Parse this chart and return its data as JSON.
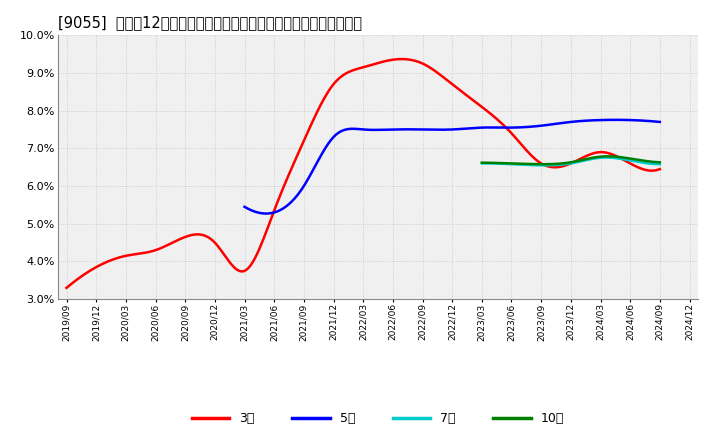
{
  "title": "[9055]  売上高12か月移動合計の対前年同期増減率の標準偏差の推移",
  "ylim": [
    0.03,
    0.1
  ],
  "yticks": [
    0.03,
    0.04,
    0.05,
    0.06,
    0.07,
    0.08,
    0.09,
    0.1
  ],
  "x_labels": [
    "2019/09",
    "2019/12",
    "2020/03",
    "2020/06",
    "2020/09",
    "2020/12",
    "2021/03",
    "2021/06",
    "2021/09",
    "2021/12",
    "2022/03",
    "2022/06",
    "2022/09",
    "2022/12",
    "2023/03",
    "2023/06",
    "2023/09",
    "2023/12",
    "2024/03",
    "2024/06",
    "2024/09",
    "2024/12"
  ],
  "series": {
    "3year": {
      "color": "#ff0000",
      "label": "3年",
      "x": [
        0,
        1,
        2,
        3,
        4,
        5,
        6,
        7,
        8,
        9,
        10,
        11,
        12,
        13,
        14,
        15,
        16,
        17,
        18,
        19,
        20
      ],
      "y": [
        0.033,
        0.0385,
        0.0415,
        0.043,
        0.0465,
        0.045,
        0.0375,
        0.0535,
        0.072,
        0.087,
        0.0915,
        0.0935,
        0.0925,
        0.087,
        0.081,
        0.074,
        0.066,
        0.066,
        0.069,
        0.066,
        0.0645
      ]
    },
    "5year": {
      "color": "#0000ff",
      "label": "5年",
      "x": [
        6,
        7,
        8,
        9,
        10,
        11,
        12,
        13,
        14,
        15,
        16,
        17,
        18,
        19,
        20
      ],
      "y": [
        0.0545,
        0.053,
        0.06,
        0.073,
        0.075,
        0.075,
        0.075,
        0.075,
        0.0755,
        0.0755,
        0.076,
        0.077,
        0.0775,
        0.0775,
        0.077
      ]
    },
    "7year": {
      "color": "#00cccc",
      "label": "7年",
      "x": [
        14,
        15,
        16,
        17,
        18,
        19,
        20
      ],
      "y": [
        0.066,
        0.0658,
        0.0655,
        0.066,
        0.0675,
        0.0668,
        0.0658
      ]
    },
    "10year": {
      "color": "#008000",
      "label": "10年",
      "x": [
        14,
        15,
        16,
        17,
        18,
        19,
        20
      ],
      "y": [
        0.0662,
        0.066,
        0.0658,
        0.0663,
        0.0678,
        0.0673,
        0.0663
      ]
    }
  },
  "background_color": "#ffffff",
  "plot_bg_color": "#f0f0f0",
  "grid_color": "#bbbbbb",
  "title_fontsize": 10.5,
  "legend_labels": [
    "3年",
    "5年",
    "7年",
    "10年"
  ],
  "legend_colors": [
    "#ff0000",
    "#0000ff",
    "#00cccc",
    "#008000"
  ]
}
